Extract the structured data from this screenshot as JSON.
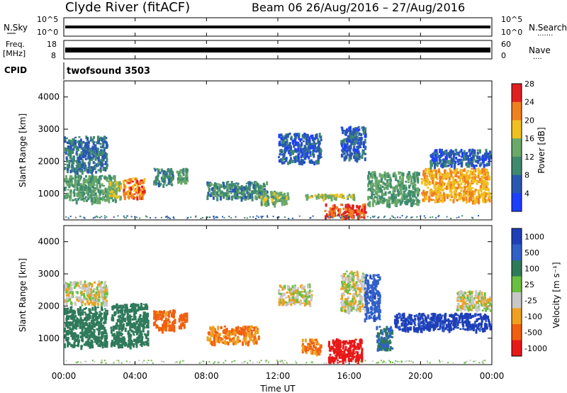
{
  "header": {
    "site": "Clyde River (fitACF)",
    "beam_date": "Beam 06  26/Aug/2016 – 27/Aug/2016"
  },
  "nsky_panel": {
    "left_label": "N.Sky",
    "left_ticks": [
      "10^5",
      "10^0"
    ],
    "right_label": "N.Search",
    "right_ticks": [
      "10^5",
      "10^0"
    ]
  },
  "freq_panel": {
    "left_label_1": "Freq.",
    "left_label_2": "[MHz]",
    "left_ticks": [
      "18",
      "8"
    ],
    "right_label": "Nave",
    "right_ticks": [
      "60",
      "0"
    ]
  },
  "cpid_panel": {
    "label": "CPID",
    "program": "twofsound 3503"
  },
  "power_panel": {
    "ylabel": "Slant Range [km]",
    "colorbar_label": "Power [dB]",
    "colorbar_ticks": [
      "4",
      "8",
      "12",
      "16",
      "20",
      "24",
      "28"
    ],
    "colors": [
      "#1d3fff",
      "#2a58b0",
      "#3f8a6f",
      "#6aa96a",
      "#f0c020",
      "#f08020",
      "#e02020"
    ]
  },
  "velocity_panel": {
    "ylabel": "Slant Range [km]",
    "colorbar_label": "Velocity [m s⁻¹]",
    "colorbar_ticks": [
      "1000",
      "500",
      "100",
      "25",
      "-25",
      "-100",
      "-500",
      "-1000"
    ],
    "colors": [
      "#1e3fb8",
      "#3060c8",
      "#2f7a5a",
      "#6abf40",
      "#c8c8c8",
      "#f0a020",
      "#f06010",
      "#e81818"
    ]
  },
  "xaxis": {
    "label": "Time UT",
    "ticks": [
      "00:00",
      "04:00",
      "08:00",
      "12:00",
      "16:00",
      "20:00",
      "00:00"
    ]
  },
  "chart_data": [
    {
      "type": "line",
      "title": "N.Sky / N.Search",
      "x": [
        0,
        4,
        8,
        12,
        16,
        20,
        24
      ],
      "series": [
        {
          "name": "N.Sky",
          "values": [
            3,
            3,
            3,
            3,
            3,
            3,
            3
          ]
        }
      ]
    },
    {
      "type": "line",
      "title": "Freq. / Nave",
      "x": [
        0,
        4,
        8,
        12,
        16,
        20,
        24
      ],
      "series": [
        {
          "name": "Freq. [MHz]",
          "values": [
            11,
            11,
            11,
            11,
            11,
            11,
            11
          ]
        }
      ]
    },
    {
      "type": "heatmap",
      "title": "Power [dB]",
      "xlabel": "Time UT",
      "ylabel": "Slant Range [km]",
      "xlim": [
        0,
        24
      ],
      "ylim": [
        180,
        4500
      ],
      "cells": [
        {
          "t": [
            0.0,
            2.5
          ],
          "r": [
            1600,
            2800
          ],
          "v": 10
        },
        {
          "t": [
            0.0,
            3.0
          ],
          "r": [
            700,
            1600
          ],
          "v": 14
        },
        {
          "t": [
            3.3,
            4.6
          ],
          "r": [
            800,
            1500
          ],
          "v": 24
        },
        {
          "t": [
            2.5,
            3.3
          ],
          "r": [
            800,
            1400
          ],
          "v": 18
        },
        {
          "t": [
            5.0,
            6.2
          ],
          "r": [
            1200,
            1800
          ],
          "v": 12
        },
        {
          "t": [
            6.3,
            7.0
          ],
          "r": [
            1300,
            1800
          ],
          "v": 14
        },
        {
          "t": [
            8.0,
            11.5
          ],
          "r": [
            800,
            1400
          ],
          "v": 12
        },
        {
          "t": [
            11.0,
            12.7
          ],
          "r": [
            600,
            1100
          ],
          "v": 16
        },
        {
          "t": [
            12.0,
            14.5
          ],
          "r": [
            1900,
            2900
          ],
          "v": 8
        },
        {
          "t": [
            13.5,
            16.5
          ],
          "r": [
            800,
            1000
          ],
          "v": 18
        },
        {
          "t": [
            14.6,
            17.0
          ],
          "r": [
            200,
            700
          ],
          "v": 26
        },
        {
          "t": [
            15.5,
            17.0
          ],
          "r": [
            2000,
            3100
          ],
          "v": 9
        },
        {
          "t": [
            17.0,
            20.0
          ],
          "r": [
            600,
            1700
          ],
          "v": 14
        },
        {
          "t": [
            20.0,
            24.0
          ],
          "r": [
            700,
            1800
          ],
          "v": 22
        },
        {
          "t": [
            20.5,
            24.0
          ],
          "r": [
            1800,
            2400
          ],
          "v": 8
        }
      ]
    },
    {
      "type": "heatmap",
      "title": "Velocity [m s⁻¹]",
      "xlabel": "Time UT",
      "ylabel": "Slant Range [km]",
      "xlim": [
        0,
        24
      ],
      "ylim": [
        180,
        4500
      ],
      "cells": [
        {
          "t": [
            0.0,
            2.5
          ],
          "r": [
            2000,
            2800
          ],
          "v": 0
        },
        {
          "t": [
            0.0,
            2.5
          ],
          "r": [
            700,
            2000
          ],
          "v": 200
        },
        {
          "t": [
            2.6,
            4.8
          ],
          "r": [
            700,
            2100
          ],
          "v": 150
        },
        {
          "t": [
            5.0,
            6.3
          ],
          "r": [
            1200,
            1900
          ],
          "v": -150
        },
        {
          "t": [
            6.4,
            7.0
          ],
          "r": [
            1300,
            1800
          ],
          "v": -200
        },
        {
          "t": [
            8.0,
            11.0
          ],
          "r": [
            800,
            1400
          ],
          "v": -100
        },
        {
          "t": [
            12.0,
            14.0
          ],
          "r": [
            2000,
            2700
          ],
          "v": 0
        },
        {
          "t": [
            13.3,
            14.5
          ],
          "r": [
            500,
            1000
          ],
          "v": -100
        },
        {
          "t": [
            14.8,
            16.8
          ],
          "r": [
            200,
            1000
          ],
          "v": -600
        },
        {
          "t": [
            15.5,
            17.0
          ],
          "r": [
            1800,
            3100
          ],
          "v": 0
        },
        {
          "t": [
            16.8,
            17.8
          ],
          "r": [
            1500,
            3000
          ],
          "v": 700
        },
        {
          "t": [
            17.5,
            18.5
          ],
          "r": [
            600,
            1400
          ],
          "v": 300
        },
        {
          "t": [
            18.5,
            24.0
          ],
          "r": [
            1200,
            1800
          ],
          "v": 800
        },
        {
          "t": [
            22.0,
            24.0
          ],
          "r": [
            1800,
            2500
          ],
          "v": 0
        }
      ]
    }
  ]
}
